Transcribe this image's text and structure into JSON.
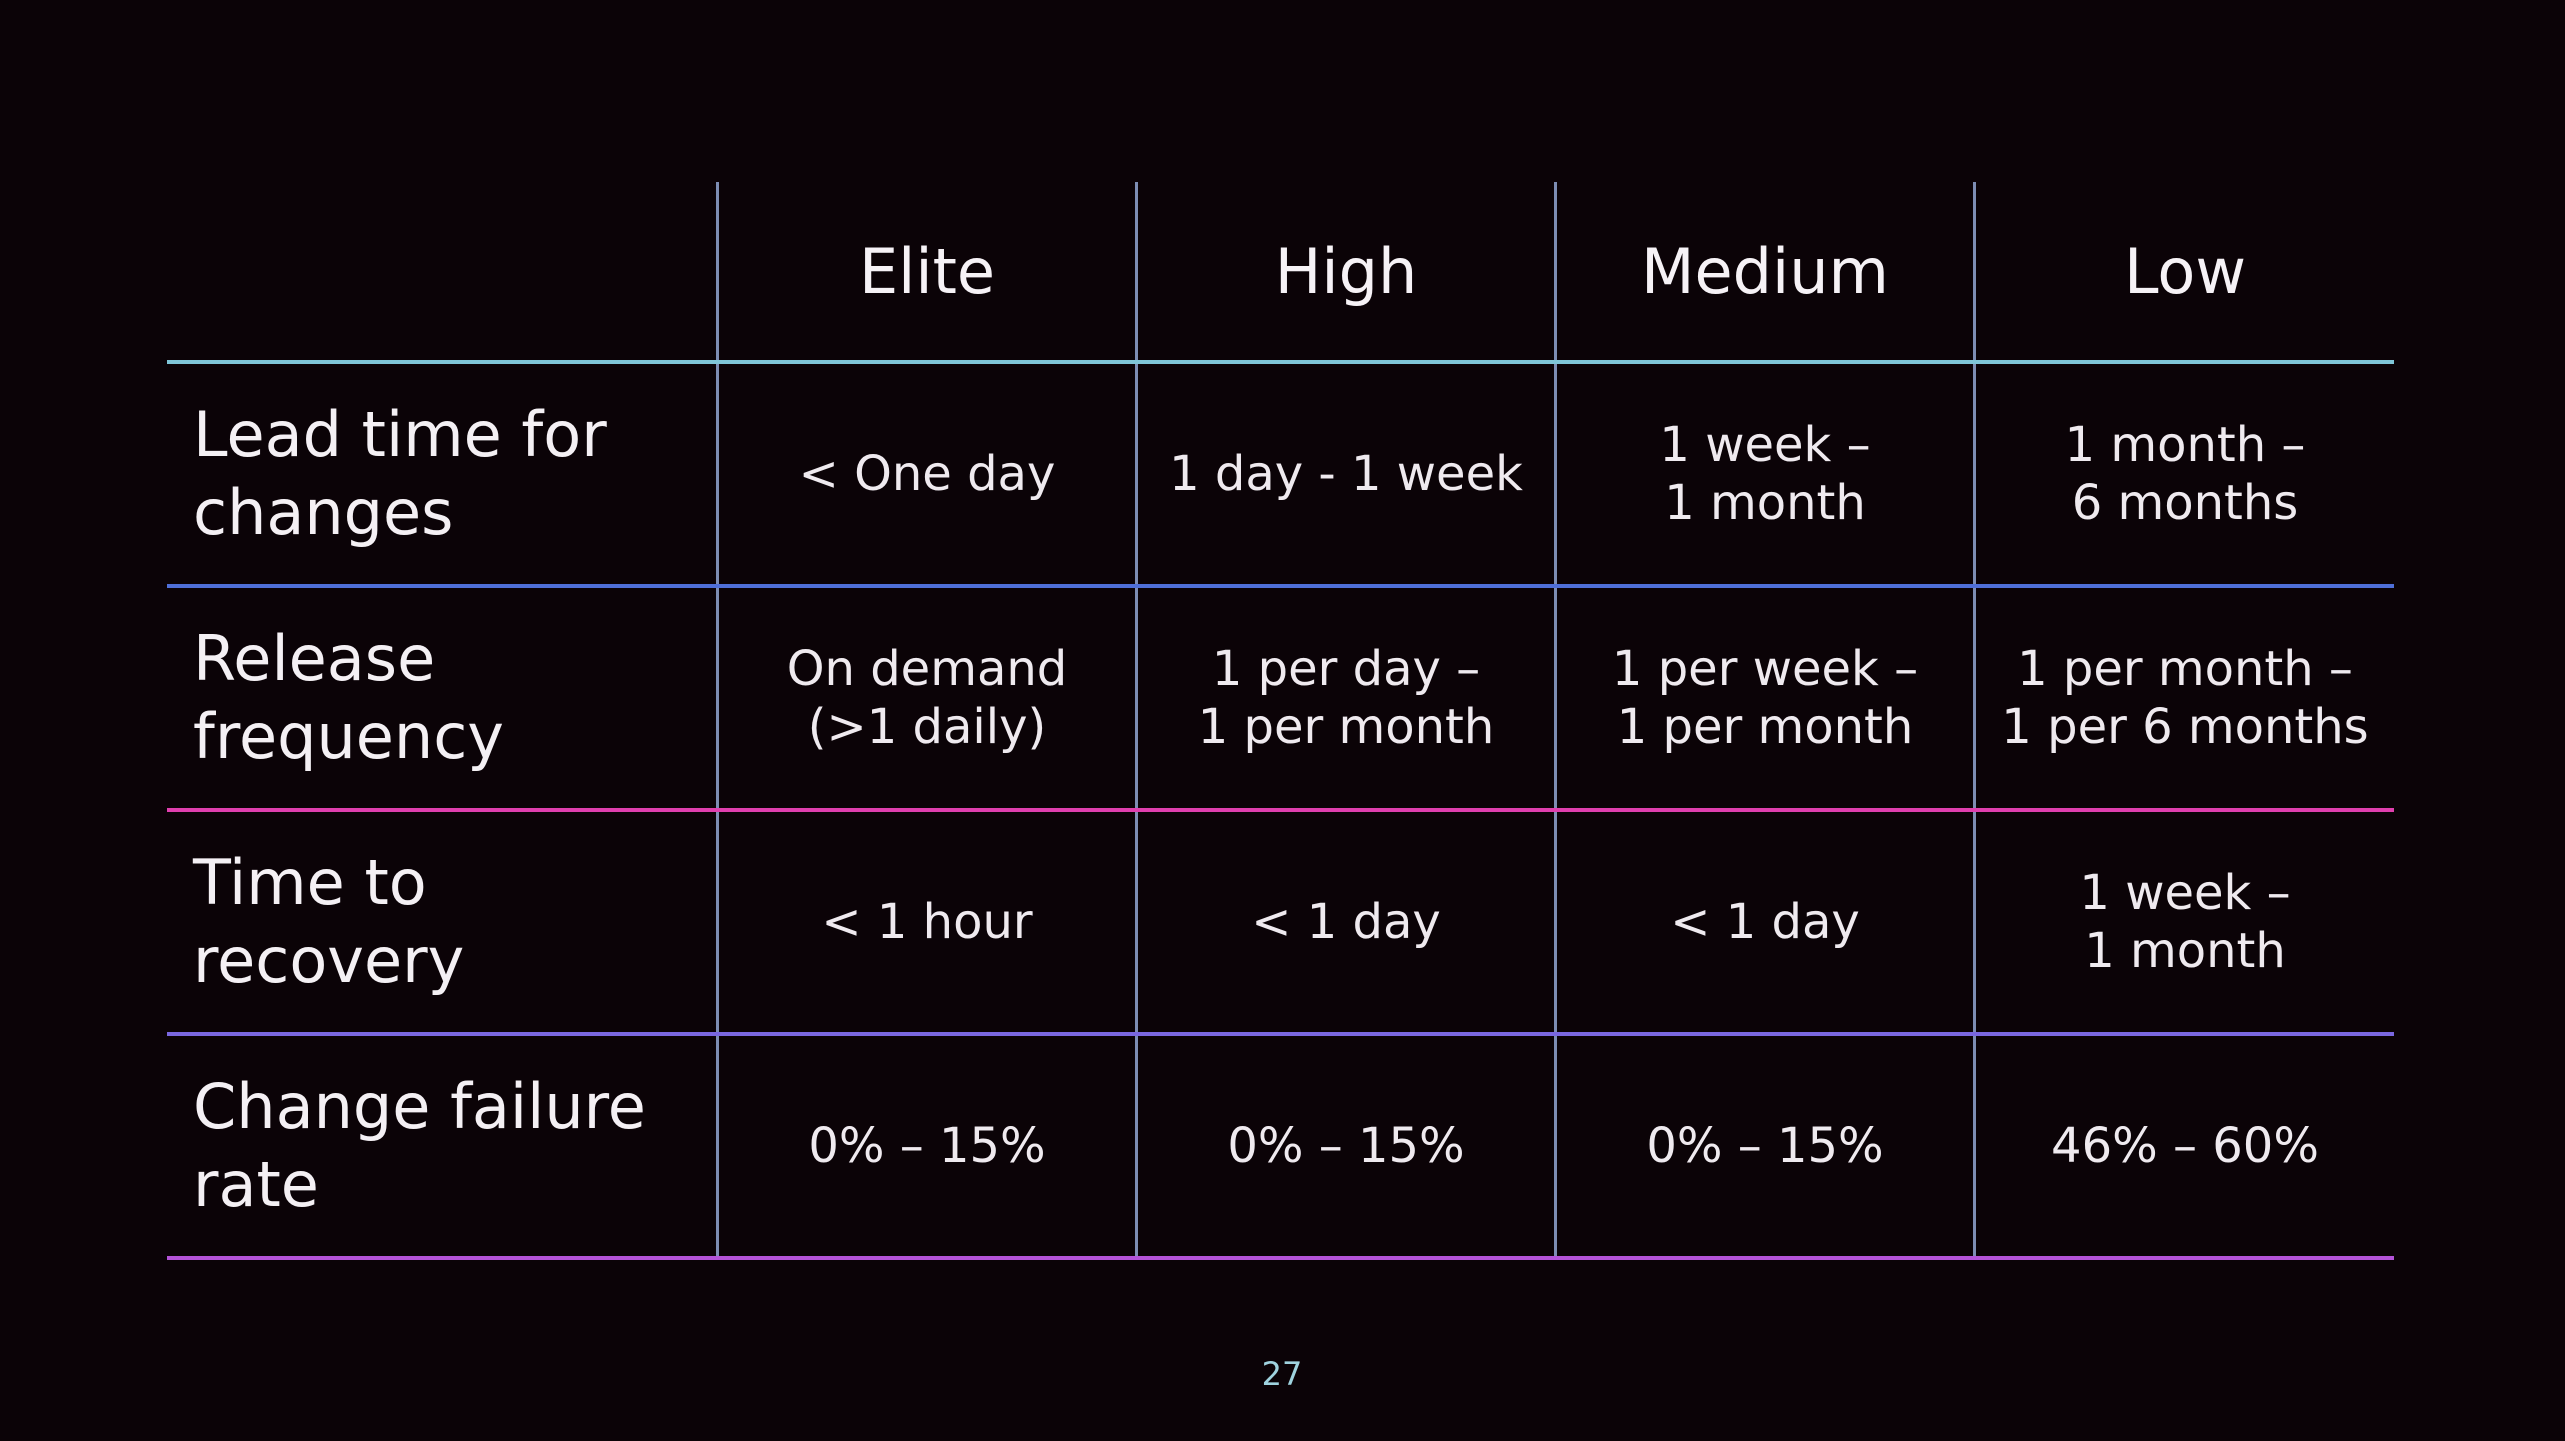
{
  "table": {
    "columns": [
      "Elite",
      "High",
      "Medium",
      "Low"
    ],
    "rows": [
      {
        "label": [
          "Lead time for",
          "changes"
        ],
        "cells": [
          [
            "< One day"
          ],
          [
            "1 day - 1 week"
          ],
          [
            "1 week –",
            "1 month"
          ],
          [
            "1 month –",
            "6 months"
          ]
        ]
      },
      {
        "label": [
          "Release",
          "frequency"
        ],
        "cells": [
          [
            "On demand",
            "(>1 daily)"
          ],
          [
            "1 per day –",
            "1 per month"
          ],
          [
            "1 per week –",
            "1 per month"
          ],
          [
            "1 per month –",
            "1 per 6 months"
          ]
        ]
      },
      {
        "label": [
          "Time to",
          "recovery"
        ],
        "cells": [
          [
            "< 1 hour"
          ],
          [
            "< 1 day"
          ],
          [
            "< 1 day"
          ],
          [
            "1 week –",
            "1 month"
          ]
        ]
      },
      {
        "label": [
          "Change failure",
          "rate"
        ],
        "cells": [
          [
            "0% – 15%"
          ],
          [
            "0% – 15%"
          ],
          [
            "0% – 15%"
          ],
          [
            "46% – 60%"
          ]
        ]
      }
    ]
  },
  "page_number": "27",
  "colors": {
    "background": "#0b0307",
    "row_divider_1": "#7fc6d8",
    "row_divider_2": "#4f6fd8",
    "row_divider_3": "#e03fae",
    "row_divider_4": "#7a67e0",
    "row_divider_5": "#b453d8",
    "column_divider": "#7d8db3"
  }
}
